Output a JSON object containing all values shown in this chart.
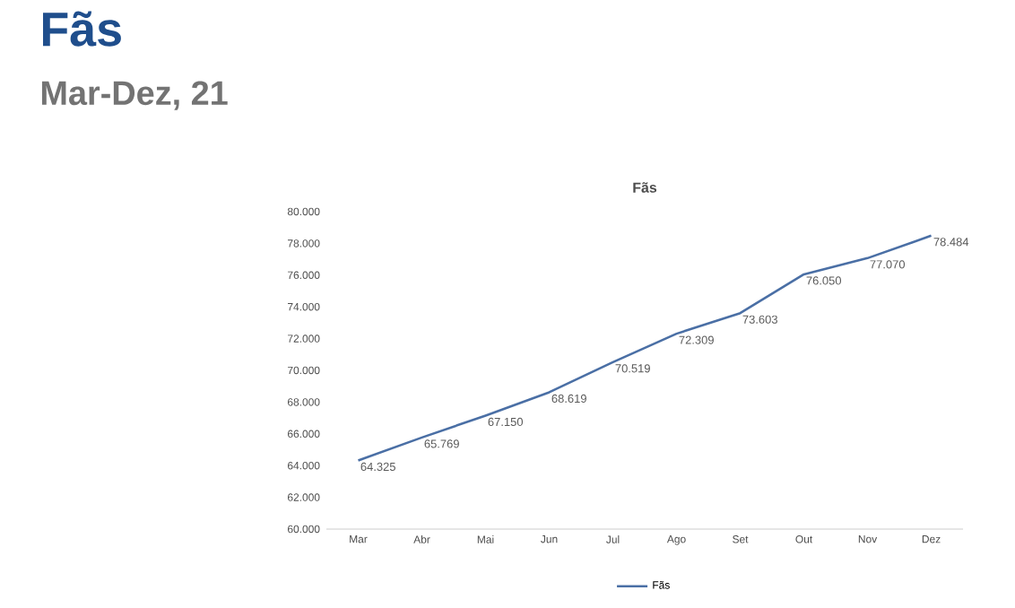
{
  "chart_data": {
    "type": "line",
    "title": "Fãs",
    "subtitle": "Mar-Dez, 21",
    "annotations": [
      "Fãs"
    ],
    "categories": [
      "Mar",
      "Abr",
      "Mai",
      "Jun",
      "Jul",
      "Ago",
      "Set",
      "Out",
      "Nov",
      "Dez"
    ],
    "series": [
      {
        "name": "Fãs",
        "color": "#4a6fa5",
        "values": [
          64325,
          65769,
          67150,
          68619,
          70519,
          72309,
          73603,
          76050,
          77070,
          78484
        ],
        "value_labels": [
          "64.325",
          "65.769",
          "67.150",
          "68.619",
          "70.519",
          "72.309",
          "73.603",
          "76.050",
          "77.070",
          "78.484"
        ]
      }
    ],
    "ylim": [
      60000,
      80000
    ],
    "yticks": [
      {
        "value": 60000,
        "label": "60.000"
      },
      {
        "value": 62000,
        "label": "62.000"
      },
      {
        "value": 64000,
        "label": "64.000"
      },
      {
        "value": 66000,
        "label": "66.000"
      },
      {
        "value": 68000,
        "label": "68.000"
      },
      {
        "value": 70000,
        "label": "70.000"
      },
      {
        "value": 72000,
        "label": "72.000"
      },
      {
        "value": 74000,
        "label": "74.000"
      },
      {
        "value": 76000,
        "label": "76.000"
      },
      {
        "value": 78000,
        "label": "78.000"
      },
      {
        "value": 80000,
        "label": "80.000"
      }
    ],
    "legend": "bottom",
    "marker": "none",
    "line_style": "solid"
  }
}
